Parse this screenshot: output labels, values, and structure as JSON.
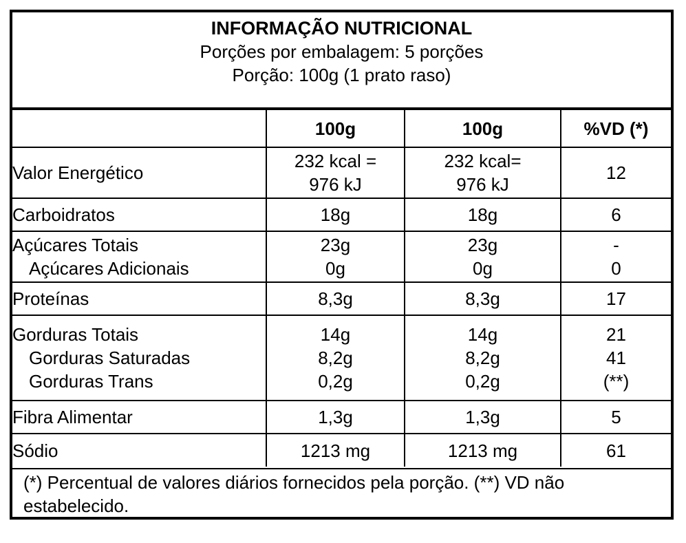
{
  "header": {
    "title": "INFORMAÇÃO NUTRICIONAL",
    "servings_per_package": "Porções por embalagem: 5 porções",
    "serving_size": "Porção: 100g (1 prato raso)"
  },
  "table": {
    "columns": [
      "",
      "100g",
      "100g",
      "%VD (*)"
    ],
    "rows": [
      {
        "name": "Valor Energético",
        "col1": [
          "232 kcal =",
          "976 kJ"
        ],
        "col2": [
          "232 kcal=",
          "976 kJ"
        ],
        "vd": "12"
      },
      {
        "name": "Carboidratos",
        "col1": "18g",
        "col2": "18g",
        "vd": "6"
      },
      {
        "name": "Açúcares Totais",
        "sub_name": "Açúcares Adicionais",
        "col1": [
          "23g",
          "0g"
        ],
        "col2": [
          "23g",
          "0g"
        ],
        "vd": [
          "-",
          "0"
        ]
      },
      {
        "name": "Proteínas",
        "col1": "8,3g",
        "col2": "8,3g",
        "vd": "17"
      },
      {
        "name": "Gorduras Totais",
        "sub_names": [
          "Gorduras Saturadas",
          "Gorduras Trans"
        ],
        "col1": [
          "14g",
          "8,2g",
          "0,2g"
        ],
        "col2": [
          "14g",
          "8,2g",
          "0,2g"
        ],
        "vd": [
          "21",
          "41",
          "(**)"
        ]
      },
      {
        "name": "Fibra Alimentar",
        "col1": "1,3g",
        "col2": "1,3g",
        "vd": "5"
      },
      {
        "name": "Sódio",
        "col1": "1213 mg",
        "col2": "1213 mg",
        "vd": "61"
      }
    ]
  },
  "footnote": "(*) Percentual de valores diários fornecidos pela porção. (**) VD não estabelecido."
}
